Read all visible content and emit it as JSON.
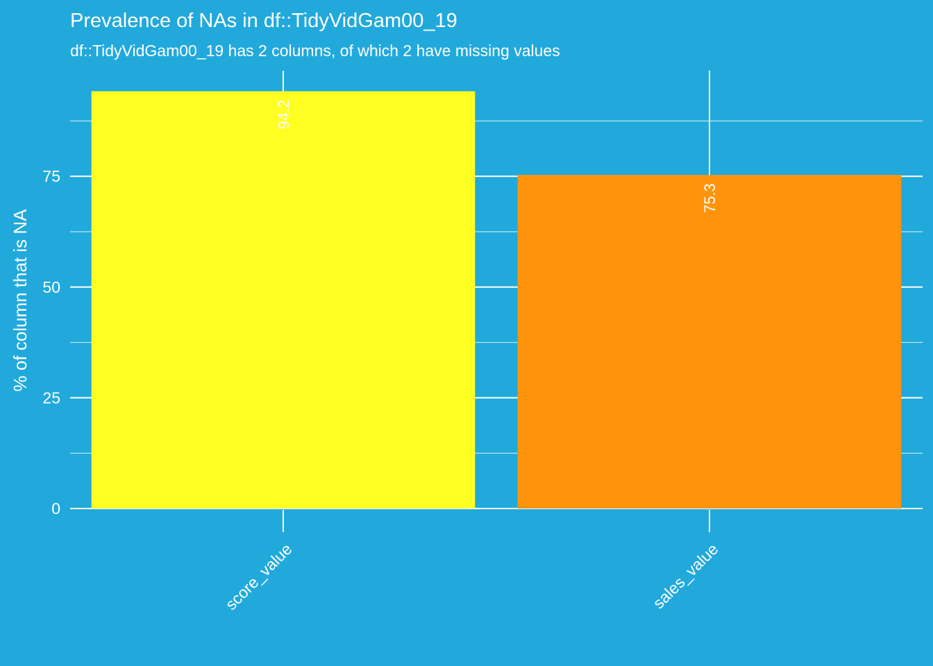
{
  "chart_data": {
    "type": "bar",
    "title": "Prevalence of NAs in df::TidyVidGam00_19",
    "subtitle": "df::TidyVidGam00_19 has 2 columns, of which 2 have missing values",
    "xlabel": "",
    "ylabel": "% of column that is NA",
    "categories": [
      "score_value",
      "sales_value"
    ],
    "values": [
      94.2,
      75.3
    ],
    "data_labels": [
      "94.2",
      "75.3"
    ],
    "bar_colors": [
      "#ffff22",
      "#ff940c"
    ],
    "ylim": [
      0,
      100
    ],
    "yticks": [
      0,
      25,
      50,
      75
    ],
    "ytick_labels": [
      "0",
      "25",
      "50",
      "75"
    ],
    "grid": true,
    "legend": "none",
    "background_color": "#22a9dc",
    "grid_color": "#ffffff",
    "text_color": "#ffffff"
  }
}
